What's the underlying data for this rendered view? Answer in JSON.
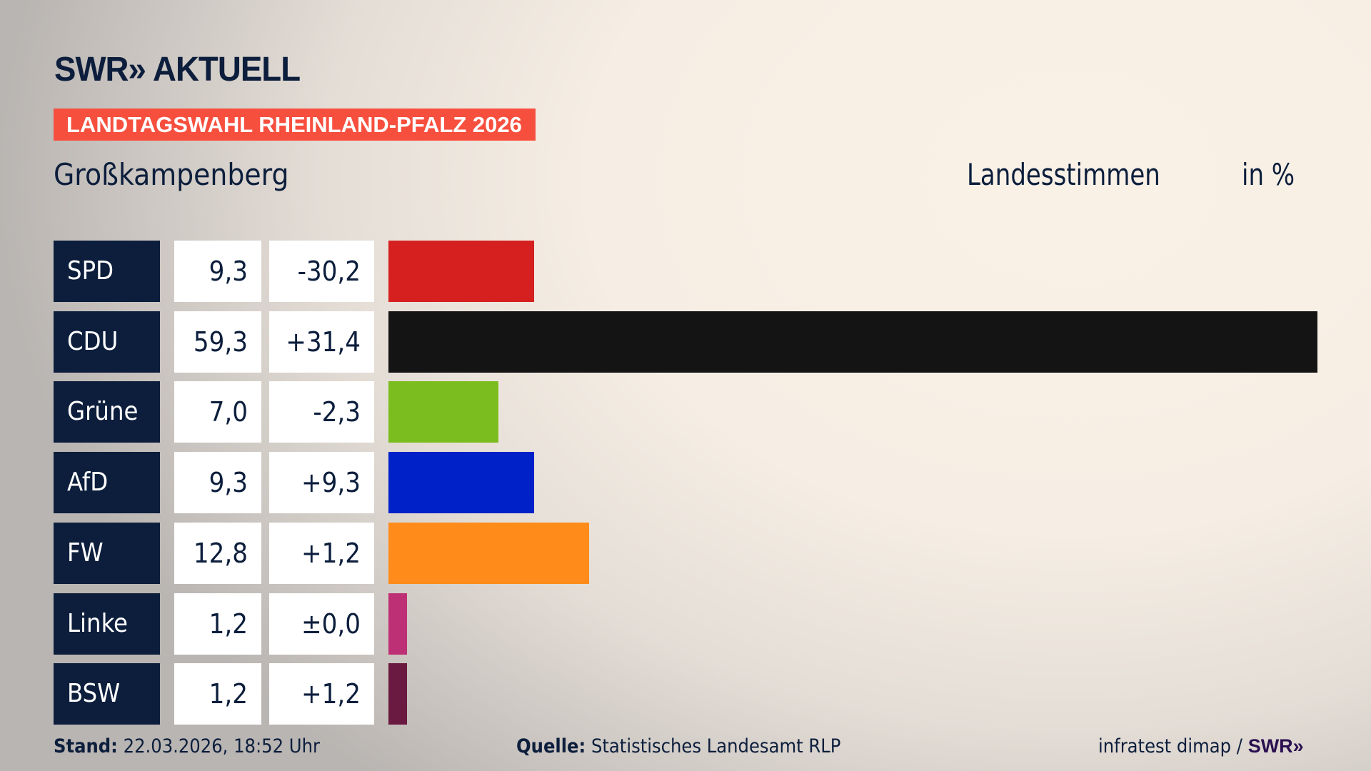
{
  "header": {
    "logo": "SWR» AKTUELL",
    "banner": "LANDTAGSWAHL RHEINLAND-PFALZ 2026",
    "place": "Großkampenberg",
    "vote_type": "Landesstimmen",
    "unit": "in %"
  },
  "chart_data": {
    "type": "bar",
    "orientation": "horizontal",
    "categories": [
      "SPD",
      "CDU",
      "Grüne",
      "AfD",
      "FW",
      "Linke",
      "BSW"
    ],
    "values": [
      9.3,
      59.3,
      7.0,
      9.3,
      12.8,
      1.2,
      1.2
    ],
    "value_labels": [
      "9,3",
      "59,3",
      "7,0",
      "9,3",
      "12,8",
      "1,2",
      "1,2"
    ],
    "diff_labels": [
      "-30,2",
      "+31,4",
      "-2,3",
      "+9,3",
      "+1,2",
      "±0,0",
      "+1,2"
    ],
    "colors": [
      "#d62020",
      "#141414",
      "#7bbd1e",
      "#0021c7",
      "#ff8c1a",
      "#be3075",
      "#6a1a40"
    ],
    "grid": false
  },
  "footer": {
    "stand_label": "Stand:",
    "stand_value": "22.03.2026, 18:52 Uhr",
    "source_label": "Quelle:",
    "source_value": "Statistisches Landesamt RLP",
    "credit": "infratest dimap /",
    "credit_logo": "SWR»"
  }
}
